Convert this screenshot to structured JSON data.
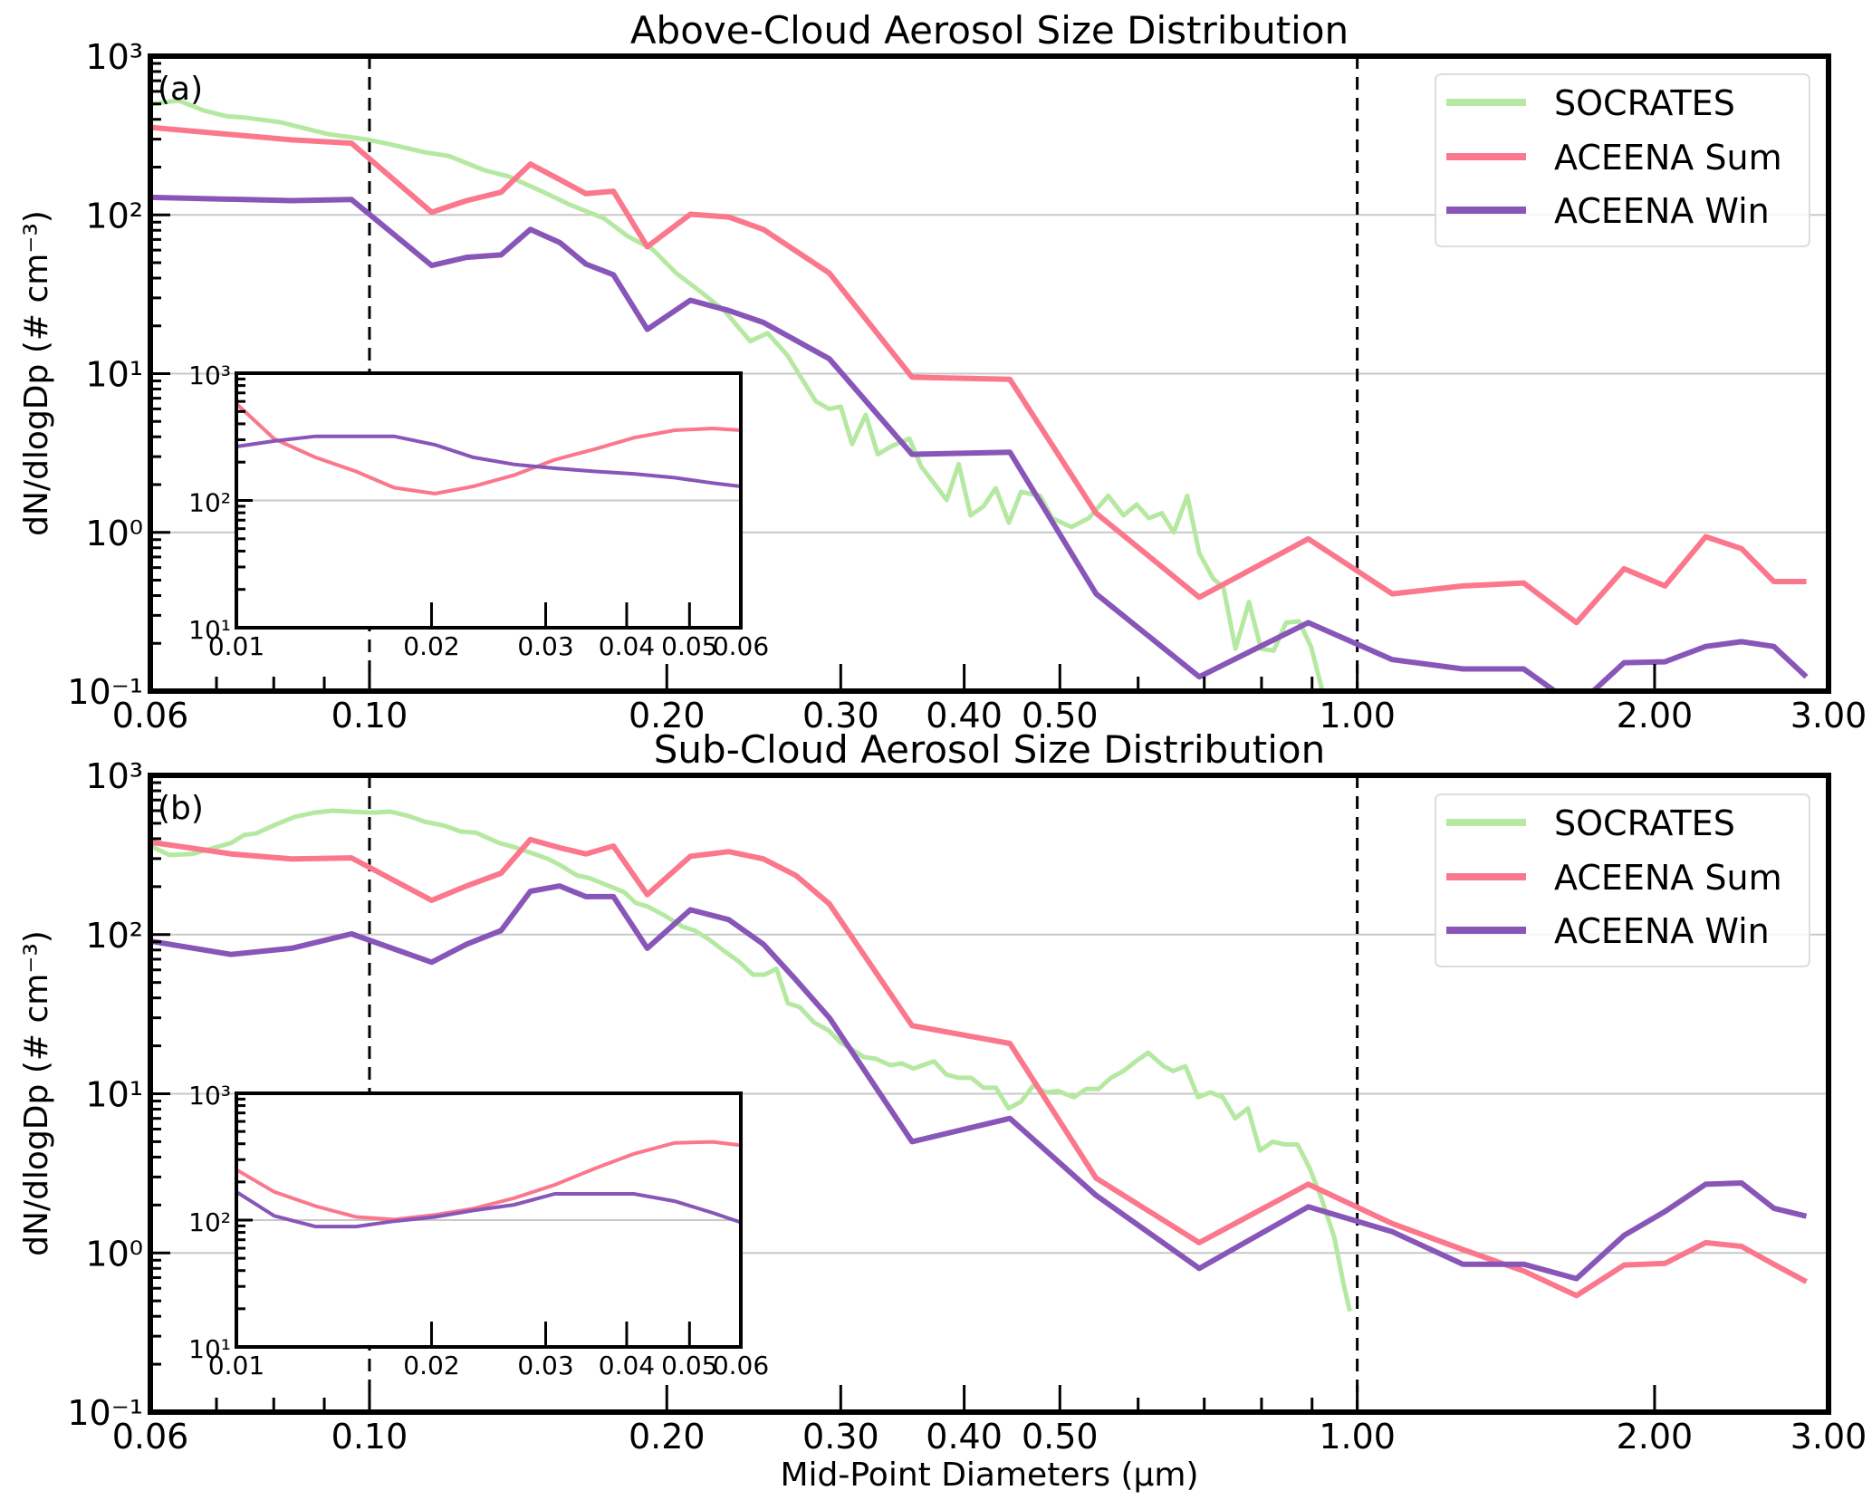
{
  "colors": {
    "SOCRATES": "#b5e9a1",
    "ACEENA Sum": "#fb778c",
    "ACEENA Win": "#8855b8"
  },
  "chart_data": [
    {
      "type": "line",
      "title": "Above-Cloud Aerosol Size Distribution",
      "panel_label": "(a)",
      "xlabel": "",
      "ylabel": "dN/dlogDp (# cm⁻³)",
      "xscale": "log",
      "yscale": "log",
      "xlim": [
        0.06,
        3.0
      ],
      "ylim": [
        0.1,
        1000
      ],
      "xticks": [
        {
          "v": 0.06,
          "label": "0.06"
        },
        {
          "v": 0.1,
          "label": "0.10"
        },
        {
          "v": 0.2,
          "label": "0.20"
        },
        {
          "v": 0.3,
          "label": "0.30"
        },
        {
          "v": 0.4,
          "label": "0.40"
        },
        {
          "v": 0.5,
          "label": "0.50"
        },
        {
          "v": 1.0,
          "label": "1.00"
        },
        {
          "v": 2.0,
          "label": "2.00"
        },
        {
          "v": 3.0,
          "label": "3.00"
        }
      ],
      "yticks": [
        {
          "v": 0.1,
          "label": "10⁻¹"
        },
        {
          "v": 1,
          "label": "10⁰"
        },
        {
          "v": 10,
          "label": "10¹"
        },
        {
          "v": 100,
          "label": "10²"
        },
        {
          "v": 1000,
          "label": "10³"
        }
      ],
      "grid": "horizontal at decades",
      "vlines": [
        0.1,
        1.0
      ],
      "legend": {
        "placement": "top-right",
        "entries": [
          "SOCRATES",
          "ACEENA Sum",
          "ACEENA Win"
        ]
      },
      "series": [
        {
          "name": "SOCRATES",
          "x": [
            0.06,
            0.0641,
            0.0679,
            0.0717,
            0.0746,
            0.0813,
            0.086,
            0.0909,
            0.0989,
            0.1046,
            0.1137,
            0.1203,
            0.1308,
            0.1382,
            0.1502,
            0.159,
            0.1728,
            0.1828,
            0.1933,
            0.2044,
            0.2161,
            0.2286,
            0.243,
            0.253,
            0.265,
            0.283,
            0.292,
            0.3,
            0.308,
            0.318,
            0.327,
            0.338,
            0.352,
            0.3619,
            0.384,
            0.395,
            0.406,
            0.4186,
            0.4305,
            0.444,
            0.4567,
            0.4776,
            0.491,
            0.5136,
            0.5348,
            0.5597,
            0.58,
            0.598,
            0.615,
            0.634,
            0.652,
            0.673,
            0.692,
            0.715,
            0.732,
            0.753,
            0.777,
            0.799,
            0.823,
            0.847,
            0.873,
            0.898,
            0.922
          ],
          "y": [
            500,
            525,
            456,
            418,
            411,
            383,
            351,
            322,
            300,
            280,
            248,
            235,
            191,
            175,
            139,
            117,
            95,
            73,
            61,
            43,
            33,
            25,
            16,
            18,
            13,
            6.7,
            6.0,
            6.2,
            3.6,
            5.5,
            3.1,
            3.5,
            3.9,
            2.6,
            1.6,
            2.7,
            1.28,
            1.46,
            1.9,
            1.15,
            1.8,
            1.7,
            1.23,
            1.08,
            1.23,
            1.7,
            1.28,
            1.5,
            1.23,
            1.32,
            1.0,
            1.7,
            0.74,
            0.51,
            0.45,
            0.185,
            0.365,
            0.185,
            0.18,
            0.27,
            0.275,
            0.19,
            0.1
          ]
        },
        {
          "name": "ACEENA Sum",
          "x": [
            0.06,
            0.0834,
            0.0959,
            0.1156,
            0.1254,
            0.1359,
            0.1455,
            0.1558,
            0.1656,
            0.1766,
            0.1911,
            0.2113,
            0.2311,
            0.2505,
            0.2921,
            0.3543,
            0.445,
            0.544,
            0.692,
            0.892,
            1.085,
            1.279,
            1.474,
            1.667,
            1.863,
            2.049,
            2.253,
            2.449,
            2.641,
            2.849
          ],
          "y": [
            356,
            297,
            283,
            104,
            123,
            139,
            209,
            167,
            136,
            141,
            63,
            101,
            97,
            81,
            43,
            9.5,
            9.2,
            1.32,
            0.39,
            0.91,
            0.41,
            0.46,
            0.48,
            0.27,
            0.59,
            0.46,
            0.94,
            0.79,
            0.49,
            0.49
          ]
        },
        {
          "name": "ACEENA Win",
          "x": [
            0.06,
            0.0834,
            0.0959,
            0.1156,
            0.1254,
            0.1359,
            0.1455,
            0.1558,
            0.1656,
            0.1766,
            0.1911,
            0.2113,
            0.2311,
            0.2505,
            0.2921,
            0.3543,
            0.445,
            0.544,
            0.692,
            0.892,
            1.085,
            1.279,
            1.474,
            1.667,
            1.863,
            2.049,
            2.253,
            2.449,
            2.641,
            2.849
          ],
          "y": [
            129,
            123,
            125,
            48,
            54,
            56,
            81,
            67,
            49,
            42,
            19,
            29,
            25,
            21,
            12.4,
            3.1,
            3.2,
            0.41,
            0.123,
            0.27,
            0.158,
            0.138,
            0.138,
            0.08,
            0.151,
            0.153,
            0.191,
            0.205,
            0.191,
            0.123
          ]
        }
      ],
      "inset": {
        "xlim": [
          0.01,
          0.06
        ],
        "ylim": [
          10,
          1000
        ],
        "xticks": [
          {
            "v": 0.01,
            "label": "0.01"
          },
          {
            "v": 0.02,
            "label": "0.02"
          },
          {
            "v": 0.03,
            "label": "0.03"
          },
          {
            "v": 0.04,
            "label": "0.04"
          },
          {
            "v": 0.05,
            "label": "0.05"
          },
          {
            "v": 0.06,
            "label": "0.06"
          }
        ],
        "yticks": [
          {
            "v": 10,
            "label": "10¹"
          },
          {
            "v": 100,
            "label": "10²"
          },
          {
            "v": 1000,
            "label": "10³"
          }
        ],
        "series": [
          {
            "name": "ACEENA Sum",
            "x": [
              0.01,
              0.01144,
              0.01324,
              0.0153,
              0.01751,
              0.02025,
              0.02318,
              0.0268,
              0.031,
              0.03584,
              0.04102,
              0.04745,
              0.05431,
              0.06
            ],
            "y": [
              577,
              305,
              218,
              169,
              126,
              113,
              129,
              158,
              209,
              254,
              311,
              356,
              368,
              356
            ]
          },
          {
            "name": "ACEENA Win",
            "x": [
              0.01,
              0.01144,
              0.01324,
              0.0153,
              0.01751,
              0.02025,
              0.02318,
              0.0268,
              0.031,
              0.03584,
              0.04102,
              0.04745,
              0.05431,
              0.06
            ],
            "y": [
              265,
              293,
              319,
              319,
              319,
              274,
              218,
              192,
              179,
              169,
              162,
              151,
              137,
              129
            ]
          }
        ]
      }
    },
    {
      "type": "line",
      "title": "Sub-Cloud Aerosol Size Distribution",
      "panel_label": "(b)",
      "xlabel": "Mid-Point Diameters (μm)",
      "ylabel": "dN/dlogDp (# cm⁻³)",
      "xscale": "log",
      "yscale": "log",
      "xlim": [
        0.06,
        3.0
      ],
      "ylim": [
        0.1,
        1000
      ],
      "xticks": [
        {
          "v": 0.06,
          "label": "0.06"
        },
        {
          "v": 0.1,
          "label": "0.10"
        },
        {
          "v": 0.2,
          "label": "0.20"
        },
        {
          "v": 0.3,
          "label": "0.30"
        },
        {
          "v": 0.4,
          "label": "0.40"
        },
        {
          "v": 0.5,
          "label": "0.50"
        },
        {
          "v": 1.0,
          "label": "1.00"
        },
        {
          "v": 2.0,
          "label": "2.00"
        },
        {
          "v": 3.0,
          "label": "3.00"
        }
      ],
      "yticks": [
        {
          "v": 0.1,
          "label": "10⁻¹"
        },
        {
          "v": 1,
          "label": "10⁰"
        },
        {
          "v": 10,
          "label": "10¹"
        },
        {
          "v": 100,
          "label": "10²"
        },
        {
          "v": 1000,
          "label": "10³"
        }
      ],
      "grid": "horizontal at decades",
      "vlines": [
        0.1,
        1.0
      ],
      "legend": {
        "placement": "top-right",
        "entries": [
          "SOCRATES",
          "ACEENA Sum",
          "ACEENA Win"
        ]
      },
      "series": [
        {
          "name": "SOCRATES",
          "x": [
            0.06,
            0.0627,
            0.0662,
            0.0689,
            0.0724,
            0.0747,
            0.0768,
            0.08,
            0.084,
            0.088,
            0.0917,
            0.0955,
            0.1008,
            0.105,
            0.1094,
            0.114,
            0.1188,
            0.1238,
            0.1281,
            0.1353,
            0.1397,
            0.1455,
            0.1516,
            0.1558,
            0.1623,
            0.1668,
            0.1761,
            0.181,
            0.186,
            0.1913,
            0.1992,
            0.2076,
            0.2134,
            0.2208,
            0.2284,
            0.2364,
            0.2445,
            0.2513,
            0.2583,
            0.2652,
            0.2726,
            0.282,
            0.2917,
            0.2997,
            0.308,
            0.3166,
            0.3254,
            0.3367,
            0.3459,
            0.3555,
            0.3728,
            0.3837,
            0.395,
            0.4066,
            0.4185,
            0.4308,
            0.4435,
            0.4566,
            0.47,
            0.4838,
            0.498,
            0.5164,
            0.5316,
            0.5471,
            0.5632,
            0.5798,
            0.597,
            0.6143,
            0.637,
            0.651,
            0.67,
            0.69,
            0.71,
            0.731,
            0.7525,
            0.775,
            0.797,
            0.821,
            0.845,
            0.87,
            0.895,
            0.921,
            0.948,
            0.969,
            0.983
          ],
          "y": [
            361,
            316,
            321,
            344,
            376,
            423,
            432,
            485,
            549,
            584,
            600,
            592,
            584,
            592,
            557,
            509,
            485,
            443,
            437,
            376,
            356,
            327,
            299,
            274,
            235,
            227,
            198,
            185,
            158,
            150,
            131,
            112,
            106,
            93,
            79,
            68,
            56,
            56,
            61,
            37,
            35,
            28,
            25,
            21,
            19,
            17,
            16.6,
            15.1,
            15.5,
            14.4,
            16,
            13.2,
            12.6,
            12.6,
            10.9,
            10.9,
            8.1,
            8.9,
            11.3,
            10.2,
            10.4,
            9.5,
            10.7,
            10.7,
            12.6,
            13.9,
            16,
            18.1,
            14.9,
            13.9,
            14.9,
            9.5,
            10.2,
            9.5,
            7.0,
            8.1,
            4.4,
            5.0,
            4.8,
            4.8,
            3.4,
            2.16,
            1.25,
            0.63,
            0.43
          ]
        },
        {
          "name": "ACEENA Sum",
          "x": [
            0.06,
            0.0724,
            0.0834,
            0.0959,
            0.1156,
            0.1254,
            0.1359,
            0.1455,
            0.1558,
            0.1656,
            0.1766,
            0.1911,
            0.2113,
            0.2311,
            0.2505,
            0.2702,
            0.2921,
            0.3543,
            0.445,
            0.544,
            0.692,
            0.892,
            1.085,
            1.279,
            1.474,
            1.667,
            1.863,
            2.049,
            2.253,
            2.449,
            2.641,
            2.849
          ],
          "y": [
            381,
            321,
            299,
            303,
            164,
            202,
            243,
            395,
            351,
            321,
            360,
            178,
            310,
            332,
            299,
            235,
            156,
            26.8,
            20.7,
            2.95,
            1.16,
            2.7,
            1.53,
            1.05,
            0.77,
            0.54,
            0.84,
            0.86,
            1.16,
            1.1,
            0.85,
            0.66
          ]
        },
        {
          "name": "ACEENA Win",
          "x": [
            0.06,
            0.0724,
            0.0834,
            0.0959,
            0.1156,
            0.1254,
            0.1359,
            0.1455,
            0.1558,
            0.1656,
            0.1766,
            0.1911,
            0.2113,
            0.2311,
            0.2505,
            0.2702,
            0.2921,
            0.3543,
            0.445,
            0.544,
            0.692,
            0.892,
            1.085,
            1.279,
            1.474,
            1.667,
            1.863,
            2.049,
            2.253,
            2.449,
            2.641,
            2.849
          ],
          "y": [
            91,
            75,
            82,
            101,
            67,
            87,
            106,
            187,
            202,
            173,
            173,
            82,
            143,
            124,
            87,
            52,
            30,
            5.0,
            7.0,
            2.3,
            0.8,
            1.95,
            1.36,
            0.85,
            0.85,
            0.69,
            1.29,
            1.82,
            2.7,
            2.75,
            1.91,
            1.7
          ]
        }
      ],
      "inset": {
        "xlim": [
          0.01,
          0.06
        ],
        "ylim": [
          10,
          1000
        ],
        "xticks": [
          {
            "v": 0.01,
            "label": "0.01"
          },
          {
            "v": 0.02,
            "label": "0.02"
          },
          {
            "v": 0.03,
            "label": "0.03"
          },
          {
            "v": 0.04,
            "label": "0.04"
          },
          {
            "v": 0.05,
            "label": "0.05"
          },
          {
            "v": 0.06,
            "label": "0.06"
          }
        ],
        "yticks": [
          {
            "v": 10,
            "label": "10¹"
          },
          {
            "v": 100,
            "label": "10²"
          },
          {
            "v": 1000,
            "label": "10³"
          }
        ],
        "series": [
          {
            "name": "ACEENA Sum",
            "x": [
              0.01,
              0.01144,
              0.01324,
              0.0153,
              0.01751,
              0.02025,
              0.02318,
              0.0268,
              0.031,
              0.03584,
              0.04102,
              0.04745,
              0.05431,
              0.06
            ],
            "y": [
              250,
              167,
              129,
              106,
              101,
              110,
              123,
              149,
              190,
              257,
              333,
              407,
              414,
              389
            ]
          },
          {
            "name": "ACEENA Win",
            "x": [
              0.01,
              0.01144,
              0.01324,
              0.0153,
              0.01751,
              0.02025,
              0.02318,
              0.0268,
              0.031,
              0.03584,
              0.04102,
              0.04745,
              0.05431,
              0.06
            ],
            "y": [
              167,
              108,
              89,
              89,
              98,
              106,
              119,
              132,
              161,
              161,
              161,
              141,
              114,
              96
            ]
          }
        ]
      }
    }
  ]
}
